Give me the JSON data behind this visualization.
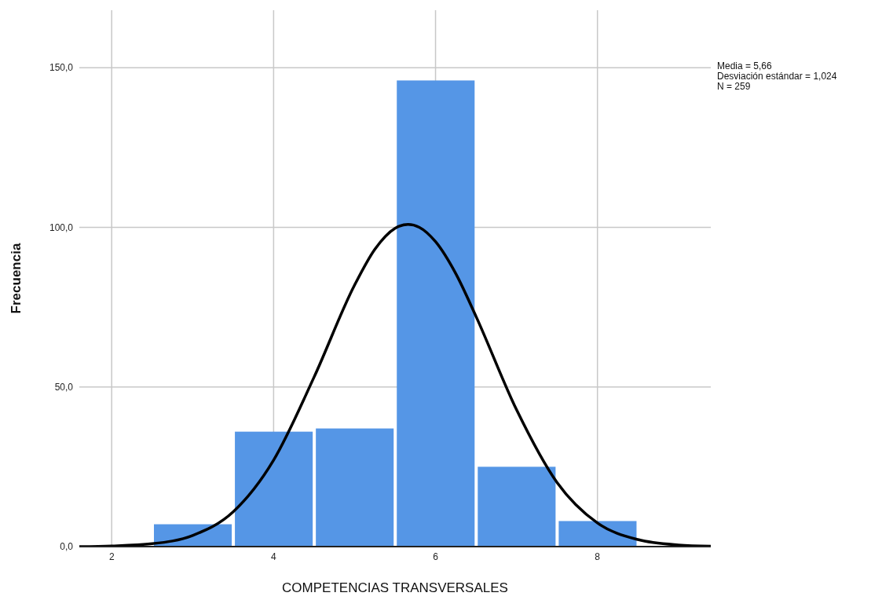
{
  "chart_data": {
    "type": "histogram",
    "xlabel": "COMPETENCIAS TRANSVERSALES",
    "ylabel": "Frecuencia",
    "annotations": [
      "Media = 5,66",
      "Desviación estándar = 1,024",
      "N = 259"
    ],
    "bins": [
      2.5,
      3.5,
      4.5,
      5.5,
      6.5,
      7.5,
      8.5
    ],
    "series": [
      {
        "color": "#5596e6",
        "values": [
          7,
          36,
          37,
          146,
          25,
          8
        ]
      },
      {
        "type": "line",
        "color": "#000000",
        "x": [
          1.6,
          2,
          2.5,
          3,
          3.5,
          4,
          4.5,
          5,
          5.25,
          5.5,
          5.66,
          5.8,
          6,
          6.25,
          6.5,
          7,
          7.5,
          8,
          8.5,
          9,
          9.4
        ],
        "values": [
          0,
          0.2,
          0.9,
          3.5,
          10.9,
          27.1,
          53.1,
          81.9,
          93.1,
          99.7,
          100.9,
          100,
          95.5,
          85.5,
          72.1,
          42.9,
          20.1,
          7.4,
          2.2,
          0.5,
          0.1
        ]
      }
    ],
    "xlim": [
      1.6,
      9.4
    ],
    "ylim": [
      0,
      168
    ],
    "xticks": [
      2,
      4,
      6,
      8
    ],
    "yticks": [
      {
        "value": 0,
        "label": "0,0"
      },
      {
        "value": 50,
        "label": "50,0"
      },
      {
        "value": 100,
        "label": "100,0"
      },
      {
        "value": 150,
        "label": "150,0"
      }
    ],
    "grid": true,
    "legend": false,
    "marker": "none",
    "line_style": "solid"
  }
}
